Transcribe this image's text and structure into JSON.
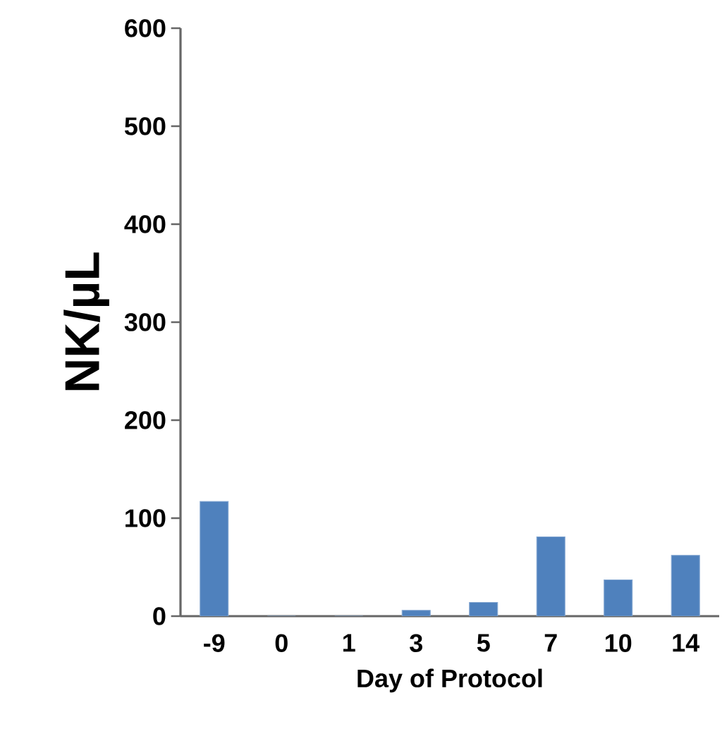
{
  "chart_data": {
    "type": "bar",
    "xlabel": "Day of Protocol",
    "ylabel": "NK/µL",
    "categories": [
      "-9",
      "0",
      "1",
      "3",
      "5",
      "7",
      "10",
      "14"
    ],
    "values": [
      117,
      0,
      0,
      6,
      14,
      81,
      37,
      62
    ],
    "color": "#4f81bd",
    "ylim": [
      0,
      600
    ],
    "yticks": [
      0,
      100,
      200,
      300,
      400,
      500,
      600
    ],
    "grid": false
  }
}
